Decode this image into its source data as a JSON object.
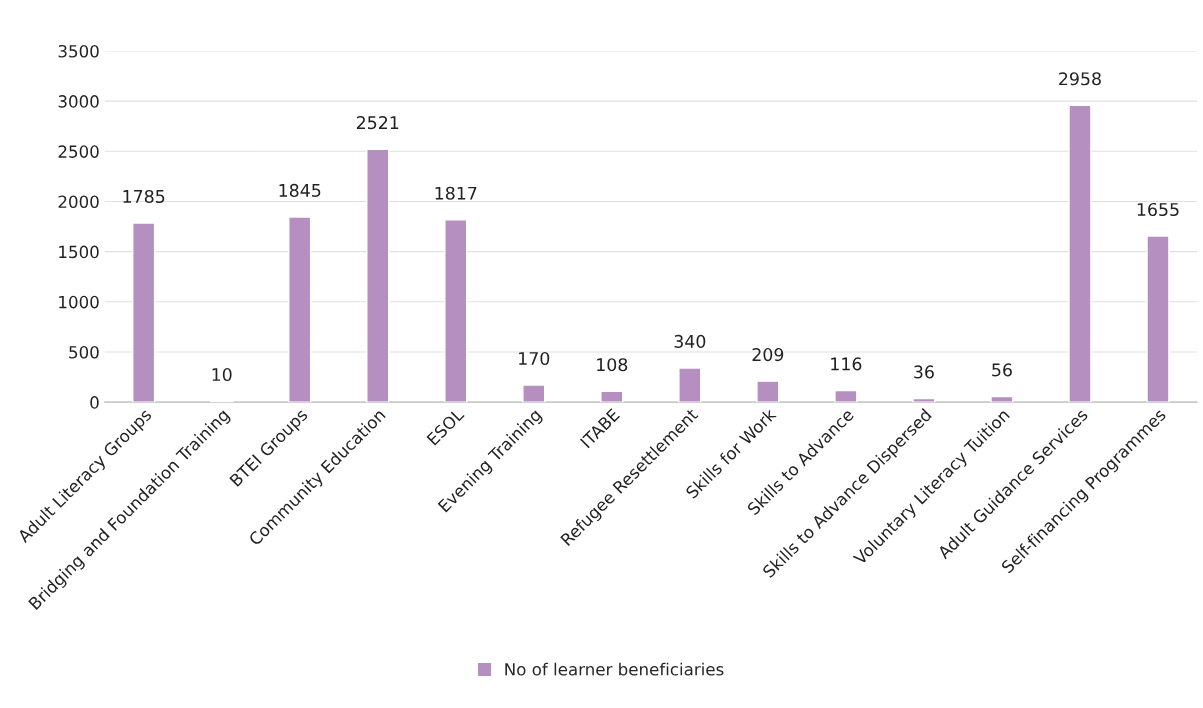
{
  "chart_data": {
    "type": "bar",
    "categories": [
      "Adult Literacy Groups",
      "Bridging and Foundation Training",
      "BTEI Groups",
      "Community Education",
      "ESOL",
      "Evening Training",
      "ITABE",
      "Refugee Resettlement",
      "Skills for Work",
      "Skills to Advance",
      "Skills to Advance Dispersed",
      "Voluntary Literacy Tuition",
      "Adult Guidance Services",
      "Self-financing Programmes"
    ],
    "series": [
      {
        "name": "No of learner beneficiaries",
        "color": "#b48fc0",
        "values": [
          1785,
          10,
          1845,
          2521,
          1817,
          170,
          108,
          340,
          209,
          116,
          36,
          56,
          2958,
          1655
        ]
      }
    ],
    "ylim": [
      0,
      3500
    ],
    "yticks": [
      0,
      500,
      1000,
      1500,
      2000,
      2500,
      3000,
      3500
    ],
    "grid": "y",
    "legend": "bottom",
    "data_labels": true
  }
}
